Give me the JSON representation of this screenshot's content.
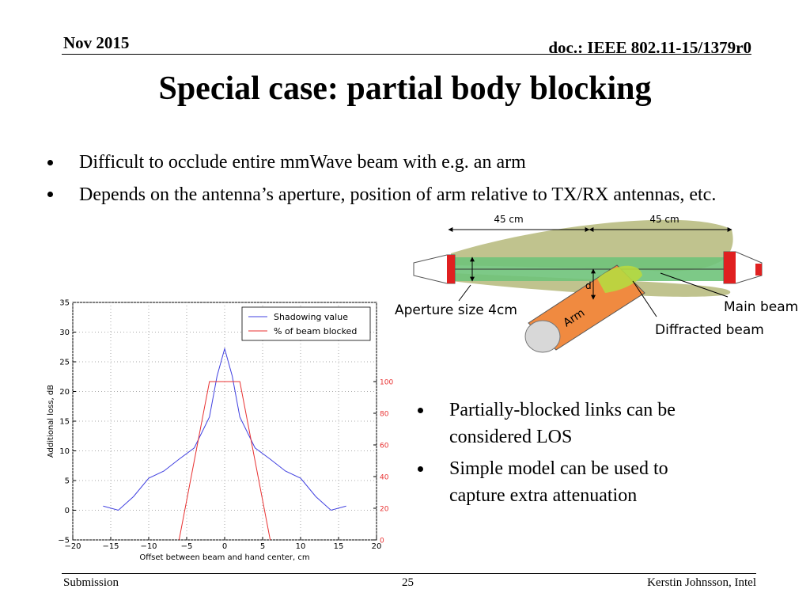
{
  "header": {
    "date": "Nov 2015",
    "doc": "doc.: IEEE 802.11-15/1379r0"
  },
  "title": "Special case: partial body blocking",
  "bullets": [
    "Difficult to occlude entire mmWave beam with e.g. an arm",
    "Depends on the antenna’s aperture, position of arm relative to TX/RX antennas, etc."
  ],
  "diagram": {
    "distance_left": "45 cm",
    "distance_right": "45 cm",
    "d": "d",
    "aperture": "Aperture size 4cm",
    "arm": "Arm",
    "main_beam": "Main beam",
    "diffracted_beam": "Diffracted beam"
  },
  "side_bullets": [
    "Partially-blocked links can be considered LOS",
    "Simple model can be used to capture extra attenuation"
  ],
  "chart_data": {
    "type": "line",
    "xlabel": "Offset between beam and hand center, cm",
    "ylabel": "Additional loss, dB",
    "xlim": [
      -20,
      20
    ],
    "ylim": [
      -5,
      35
    ],
    "y2lim": [
      0,
      150
    ],
    "xticks": [
      {
        "value": -20,
        "label": "−20"
      },
      {
        "value": -15,
        "label": "−15"
      },
      {
        "value": -10,
        "label": "−10"
      },
      {
        "value": -5,
        "label": "−5"
      },
      0,
      5,
      10,
      15,
      20
    ],
    "yticks": [
      {
        "value": -5,
        "label": "−5"
      },
      0,
      5,
      10,
      15,
      20,
      25,
      30,
      35
    ],
    "y2ticks": [
      0,
      20,
      40,
      60,
      80,
      100
    ],
    "grid": true,
    "legend": "upper right",
    "series": [
      {
        "name": "Shadowing value",
        "color": "#4040e0",
        "x": [
          -16,
          -14,
          -12,
          -10,
          -8,
          -6,
          -4,
          -2,
          -1,
          0,
          1,
          2,
          4,
          6,
          8,
          10,
          12,
          14,
          16
        ],
        "values": [
          0.7,
          0,
          2.3,
          5.4,
          6.6,
          8.6,
          10.5,
          15.7,
          22.6,
          27.2,
          22.6,
          15.7,
          10.5,
          8.6,
          6.6,
          5.4,
          2.3,
          0,
          0.7
        ]
      },
      {
        "name": "% of beam blocked",
        "color": "#e83030",
        "axis": "y2",
        "x": [
          -6,
          -2,
          2,
          6
        ],
        "values": [
          0,
          100,
          100,
          0
        ]
      }
    ]
  },
  "footer": {
    "left": "Submission",
    "page": "25",
    "right": "Kerstin Johnsson, Intel"
  }
}
